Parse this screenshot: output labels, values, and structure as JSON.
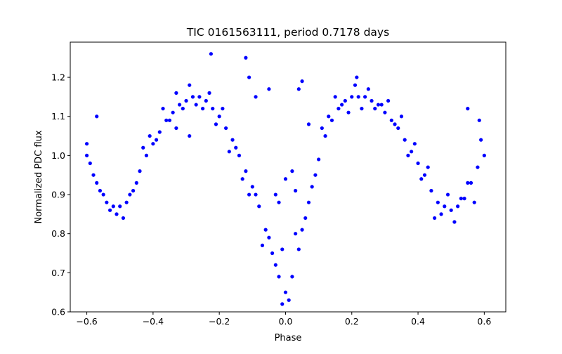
{
  "chart_data": {
    "type": "scatter",
    "title": "TIC 0161563111, period 0.7178 days",
    "xlabel": "Phase",
    "ylabel": "Normalized PDC flux",
    "xlim": [
      -0.65,
      0.665
    ],
    "ylim": [
      0.6,
      1.29
    ],
    "xticks": [
      -0.6,
      -0.4,
      -0.2,
      0.0,
      0.2,
      0.4,
      0.6
    ],
    "xtick_labels": [
      "−0.6",
      "−0.4",
      "−0.2",
      "0.0",
      "0.2",
      "0.4",
      "0.6"
    ],
    "yticks": [
      0.6,
      0.7,
      0.8,
      0.9,
      1.0,
      1.1,
      1.2
    ],
    "ytick_labels": [
      "0.6",
      "0.7",
      "0.8",
      "0.9",
      "1.0",
      "1.1",
      "1.2"
    ],
    "grid": false,
    "legend": "none",
    "marker_color": "#0000ff",
    "series": [
      {
        "x": [
          -0.6,
          -0.58,
          -0.56,
          -0.54,
          -0.52,
          -0.5,
          -0.48,
          -0.46,
          -0.44,
          -0.42,
          -0.4,
          -0.38,
          -0.36,
          -0.34,
          -0.32,
          -0.3,
          -0.28,
          -0.26,
          -0.24,
          -0.22,
          -0.2,
          -0.18,
          -0.16,
          -0.14,
          -0.12,
          -0.1,
          -0.08,
          -0.06,
          -0.04,
          -0.02,
          0.0,
          0.02,
          0.04,
          0.06,
          0.08,
          0.1,
          0.12,
          0.14,
          0.16,
          0.18,
          0.2,
          0.22,
          0.24,
          0.26,
          0.28,
          0.3,
          0.32,
          0.34,
          0.36,
          0.38,
          0.4,
          0.42,
          0.44,
          0.46,
          0.48,
          0.5,
          0.52,
          0.54,
          0.56,
          0.58,
          0.6,
          -0.6,
          -0.59,
          -0.57,
          -0.55,
          -0.53,
          -0.51,
          -0.49,
          -0.47,
          -0.45,
          -0.43,
          -0.41,
          -0.39,
          -0.37,
          -0.35,
          -0.33,
          -0.31,
          -0.29,
          -0.27,
          -0.25,
          -0.23,
          -0.21,
          -0.19,
          -0.17,
          -0.15,
          -0.13,
          -0.11,
          -0.09,
          -0.07,
          -0.05,
          -0.03,
          -0.01,
          0.01,
          0.03,
          0.05,
          0.07,
          0.09,
          0.11,
          0.13,
          0.15,
          0.17,
          0.19,
          0.21,
          0.23,
          0.25,
          0.27,
          0.29,
          0.31,
          0.33,
          0.35,
          0.37,
          0.39,
          0.41,
          0.43,
          0.45,
          0.47,
          0.49,
          0.51,
          0.53,
          0.55,
          0.57,
          0.59,
          -0.225,
          -0.12,
          -0.11,
          -0.09,
          -0.05,
          0.04,
          0.05,
          0.07,
          -0.03,
          0.03,
          -0.57,
          -0.33,
          0.55,
          0.585,
          -0.29,
          0.215,
          -0.01,
          0.0,
          0.02,
          -0.02
        ],
        "y": [
          1.0,
          0.95,
          0.91,
          0.88,
          0.87,
          0.87,
          0.88,
          0.91,
          0.96,
          1.0,
          1.03,
          1.06,
          1.09,
          1.11,
          1.13,
          1.14,
          1.15,
          1.15,
          1.14,
          1.12,
          1.1,
          1.07,
          1.04,
          1.0,
          0.96,
          0.92,
          0.87,
          0.81,
          0.75,
          0.69,
          0.65,
          0.69,
          0.76,
          0.84,
          0.92,
          0.99,
          1.05,
          1.09,
          1.12,
          1.14,
          1.15,
          1.15,
          1.15,
          1.14,
          1.13,
          1.11,
          1.09,
          1.07,
          1.04,
          1.01,
          0.98,
          0.95,
          0.91,
          0.88,
          0.87,
          0.86,
          0.87,
          0.89,
          0.93,
          0.97,
          1.0,
          1.03,
          0.98,
          0.93,
          0.9,
          0.86,
          0.85,
          0.84,
          0.9,
          0.93,
          1.02,
          1.05,
          1.04,
          1.12,
          1.09,
          1.16,
          1.12,
          1.18,
          1.13,
          1.12,
          1.16,
          1.08,
          1.12,
          1.01,
          1.02,
          0.94,
          0.9,
          0.9,
          0.77,
          0.79,
          0.72,
          0.62,
          0.63,
          0.8,
          0.81,
          0.88,
          0.95,
          1.07,
          1.1,
          1.15,
          1.13,
          1.11,
          1.18,
          1.12,
          1.17,
          1.12,
          1.13,
          1.14,
          1.08,
          1.1,
          1.0,
          1.03,
          0.94,
          0.97,
          0.84,
          0.85,
          0.9,
          0.83,
          0.89,
          0.93,
          0.88,
          1.04,
          1.26,
          1.25,
          1.2,
          1.15,
          1.17,
          1.17,
          1.19,
          1.08,
          0.9,
          0.91,
          1.1,
          1.07,
          1.12,
          1.09,
          1.05,
          1.2,
          0.76,
          0.94,
          0.96,
          0.88
        ]
      }
    ]
  }
}
